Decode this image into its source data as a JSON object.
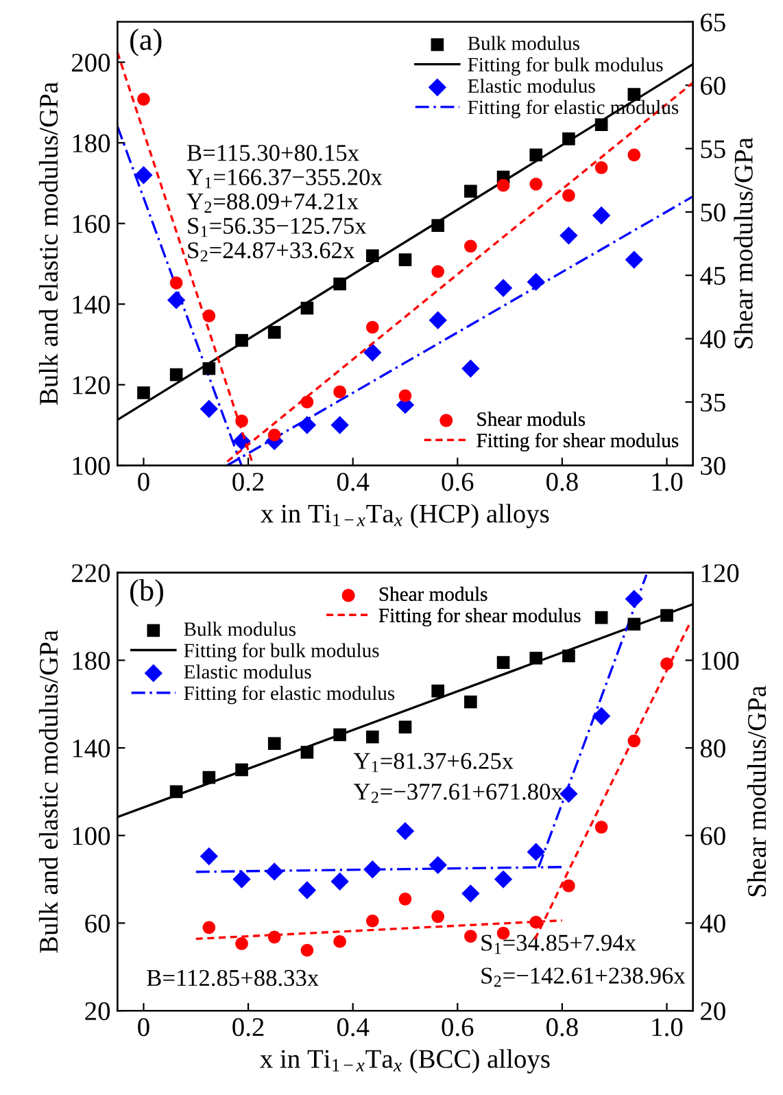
{
  "chart_data": [
    {
      "type": "scatter",
      "xlabel": "x in Ti$_{1−x}$Ta$_{x}$ (HCP) alloys",
      "ylabel": "Bulk and elastic modulus/GPa",
      "y2label": "Shear modulus/GPa",
      "xlim": [
        -0.05,
        1.05
      ],
      "xticks": [
        0,
        0.2,
        0.4,
        0.6,
        0.8,
        {
          "value": 1.0,
          "label": "1.0"
        }
      ],
      "ylim": [
        100,
        210
      ],
      "yticks": [
        100,
        120,
        140,
        160,
        180,
        200
      ],
      "y2lim": [
        30,
        65
      ],
      "y2ticks": [
        30,
        35,
        40,
        45,
        50,
        55,
        60,
        65
      ],
      "legend": "top right",
      "series": [
        {
          "name": "Bulk modulus",
          "marker": "square",
          "color": "#000000",
          "x": [
            0,
            0.0625,
            0.125,
            0.1875,
            0.25,
            0.3125,
            0.375,
            0.4375,
            0.5,
            0.5625,
            0.625,
            0.6875,
            0.75,
            0.8125,
            0.875,
            0.9375
          ],
          "values": [
            118,
            122.5,
            124,
            131,
            133,
            139,
            145,
            152,
            151,
            159.5,
            168,
            171.5,
            177,
            181,
            184.5,
            192
          ]
        },
        {
          "name": "Fitting for bulk modulus",
          "type": "line",
          "line_style": "solid",
          "color": "#000000",
          "x": [
            -0.05,
            1.05
          ],
          "values": [
            111.3,
            199.5
          ]
        },
        {
          "name": "Elastic modulus",
          "marker": "diamond",
          "color": "#0000ff",
          "x": [
            0,
            0.0625,
            0.125,
            0.1875,
            0.25,
            0.3125,
            0.375,
            0.4375,
            0.5,
            0.5625,
            0.625,
            0.6875,
            0.75,
            0.8125,
            0.875,
            0.9375
          ],
          "values": [
            172,
            141,
            114,
            106,
            106,
            110,
            110,
            128,
            115,
            136,
            124,
            144,
            145.5,
            157,
            162,
            151
          ]
        },
        {
          "name": "Fitting for elastic modulus",
          "type": "line",
          "line_style": "dashdot",
          "color": "#0000ff",
          "x": [
            -0.05,
            0.187
          ],
          "values": [
            184.1,
            100
          ]
        },
        {
          "type": "line",
          "line_style": "dashdot",
          "color": "#0000ff",
          "x": [
            0.16,
            1.05
          ],
          "values": [
            100,
            166.7
          ]
        },
        {
          "name": "Shear moduls",
          "marker": "circle",
          "color": "#ff0000",
          "axis": "y2",
          "x": [
            0,
            0.0625,
            0.125,
            0.1875,
            0.25,
            0.3125,
            0.375,
            0.4375,
            0.5,
            0.5625,
            0.625,
            0.6875,
            0.75,
            0.8125,
            0.875,
            0.9375
          ],
          "values": [
            58.9,
            44.4,
            41.8,
            33.5,
            32.4,
            35.0,
            35.8,
            40.9,
            35.5,
            45.3,
            47.3,
            52.1,
            52.2,
            51.3,
            53.5,
            54.5
          ]
        },
        {
          "name": "Fitting for shear modulus",
          "type": "line",
          "line_style": "dashed",
          "color": "#ff0000",
          "axis": "y2",
          "x": [
            -0.05,
            0.2095
          ],
          "values": [
            62.6,
            30
          ]
        },
        {
          "type": "line",
          "line_style": "dashed",
          "color": "#ff0000",
          "axis": "y2",
          "x": [
            0.16,
            1.05
          ],
          "values": [
            30.3,
            60.2
          ]
        }
      ],
      "annotations": [
        "(a)",
        "B=115.30+80.15x",
        "Y$_{1}$=166.37−355.20x",
        "Y$_{2}$=88.09+74.21x",
        "S$_{1}$=56.35−125.75x",
        "S$_{2}$=24.87+33.62x"
      ]
    },
    {
      "type": "scatter",
      "xlabel": "x in Ti$_{1−x}$Ta$_{x}$ (BCC) alloys",
      "ylabel": "Bulk and elastic modulus/GPa",
      "y2label": "Shear modulus/GPa",
      "xlim": [
        -0.05,
        1.05
      ],
      "xticks": [
        0,
        0.2,
        0.4,
        0.6,
        0.8,
        {
          "value": 1.0,
          "label": "1.0"
        }
      ],
      "ylim": [
        20,
        220
      ],
      "yticks": [
        20,
        60,
        100,
        140,
        180,
        220
      ],
      "y2lim": [
        20,
        120
      ],
      "y2ticks": [
        20,
        40,
        60,
        80,
        100,
        120
      ],
      "legend": "top left",
      "series": [
        {
          "name": "Bulk modulus",
          "marker": "square",
          "color": "#000000",
          "x": [
            0.0625,
            0.125,
            0.1875,
            0.25,
            0.3125,
            0.375,
            0.4375,
            0.5,
            0.5625,
            0.625,
            0.6875,
            0.75,
            0.8125,
            0.875,
            0.9375,
            1.0
          ],
          "values": [
            120,
            126.5,
            130,
            142,
            138,
            146,
            145,
            149.5,
            166,
            161,
            179,
            181,
            182,
            199.5,
            196.5,
            200.5
          ]
        },
        {
          "name": "Fitting for bulk modulus",
          "type": "line",
          "line_style": "solid",
          "color": "#000000",
          "x": [
            -0.05,
            1.05
          ],
          "values": [
            108.4,
            205.6
          ]
        },
        {
          "name": "Elastic modulus",
          "marker": "diamond",
          "color": "#0000ff",
          "x": [
            0.125,
            0.1875,
            0.25,
            0.3125,
            0.375,
            0.4375,
            0.5,
            0.5625,
            0.625,
            0.6875,
            0.75,
            0.8125,
            0.875,
            0.9375
          ],
          "values": [
            90.5,
            80,
            83.5,
            75,
            79,
            84.5,
            102,
            86.5,
            73.5,
            80,
            92.5,
            119,
            154.5,
            208
          ]
        },
        {
          "name": "Fitting for elastic modulus",
          "type": "line",
          "line_style": "dashdot",
          "color": "#0000ff",
          "x": [
            0.1,
            0.8
          ],
          "values": [
            83.4,
            85.6
          ]
        },
        {
          "type": "line",
          "line_style": "dashdot",
          "color": "#0000ff",
          "x": [
            0.755,
            0.961
          ],
          "values": [
            85.5,
            219
          ]
        },
        {
          "name": "Shear moduls",
          "marker": "circle",
          "color": "#ff0000",
          "axis": "y2",
          "x": [
            0.125,
            0.1875,
            0.25,
            0.3125,
            0.375,
            0.4375,
            0.5,
            0.5625,
            0.625,
            0.6875,
            0.75,
            0.8125,
            0.875,
            0.9375,
            1.0
          ],
          "values": [
            39.0,
            35.3,
            36.8,
            33.8,
            35.8,
            40.5,
            45.5,
            41.5,
            37.0,
            37.7,
            40.2,
            48.5,
            61.9,
            81.6,
            99.2
          ]
        },
        {
          "name": "Fitting for shear modulus",
          "type": "line",
          "line_style": "dashed",
          "color": "#ff0000",
          "axis": "y2",
          "x": [
            0.1,
            0.8
          ],
          "values": [
            36.4,
            40.6
          ]
        },
        {
          "type": "line",
          "line_style": "dashed",
          "color": "#ff0000",
          "axis": "y2",
          "x": [
            0.748,
            1.045
          ],
          "values": [
            36.3,
            108.7
          ]
        }
      ],
      "annotations": [
        "(b)",
        "Y$_{1}$=81.37+6.25x",
        "Y$_{2}$=−377.61+671.80x",
        "B=112.85+88.33x",
        "S$_{1}$=34.85+7.94x",
        "S$_{2}$=−142.61+238.96x"
      ]
    }
  ]
}
